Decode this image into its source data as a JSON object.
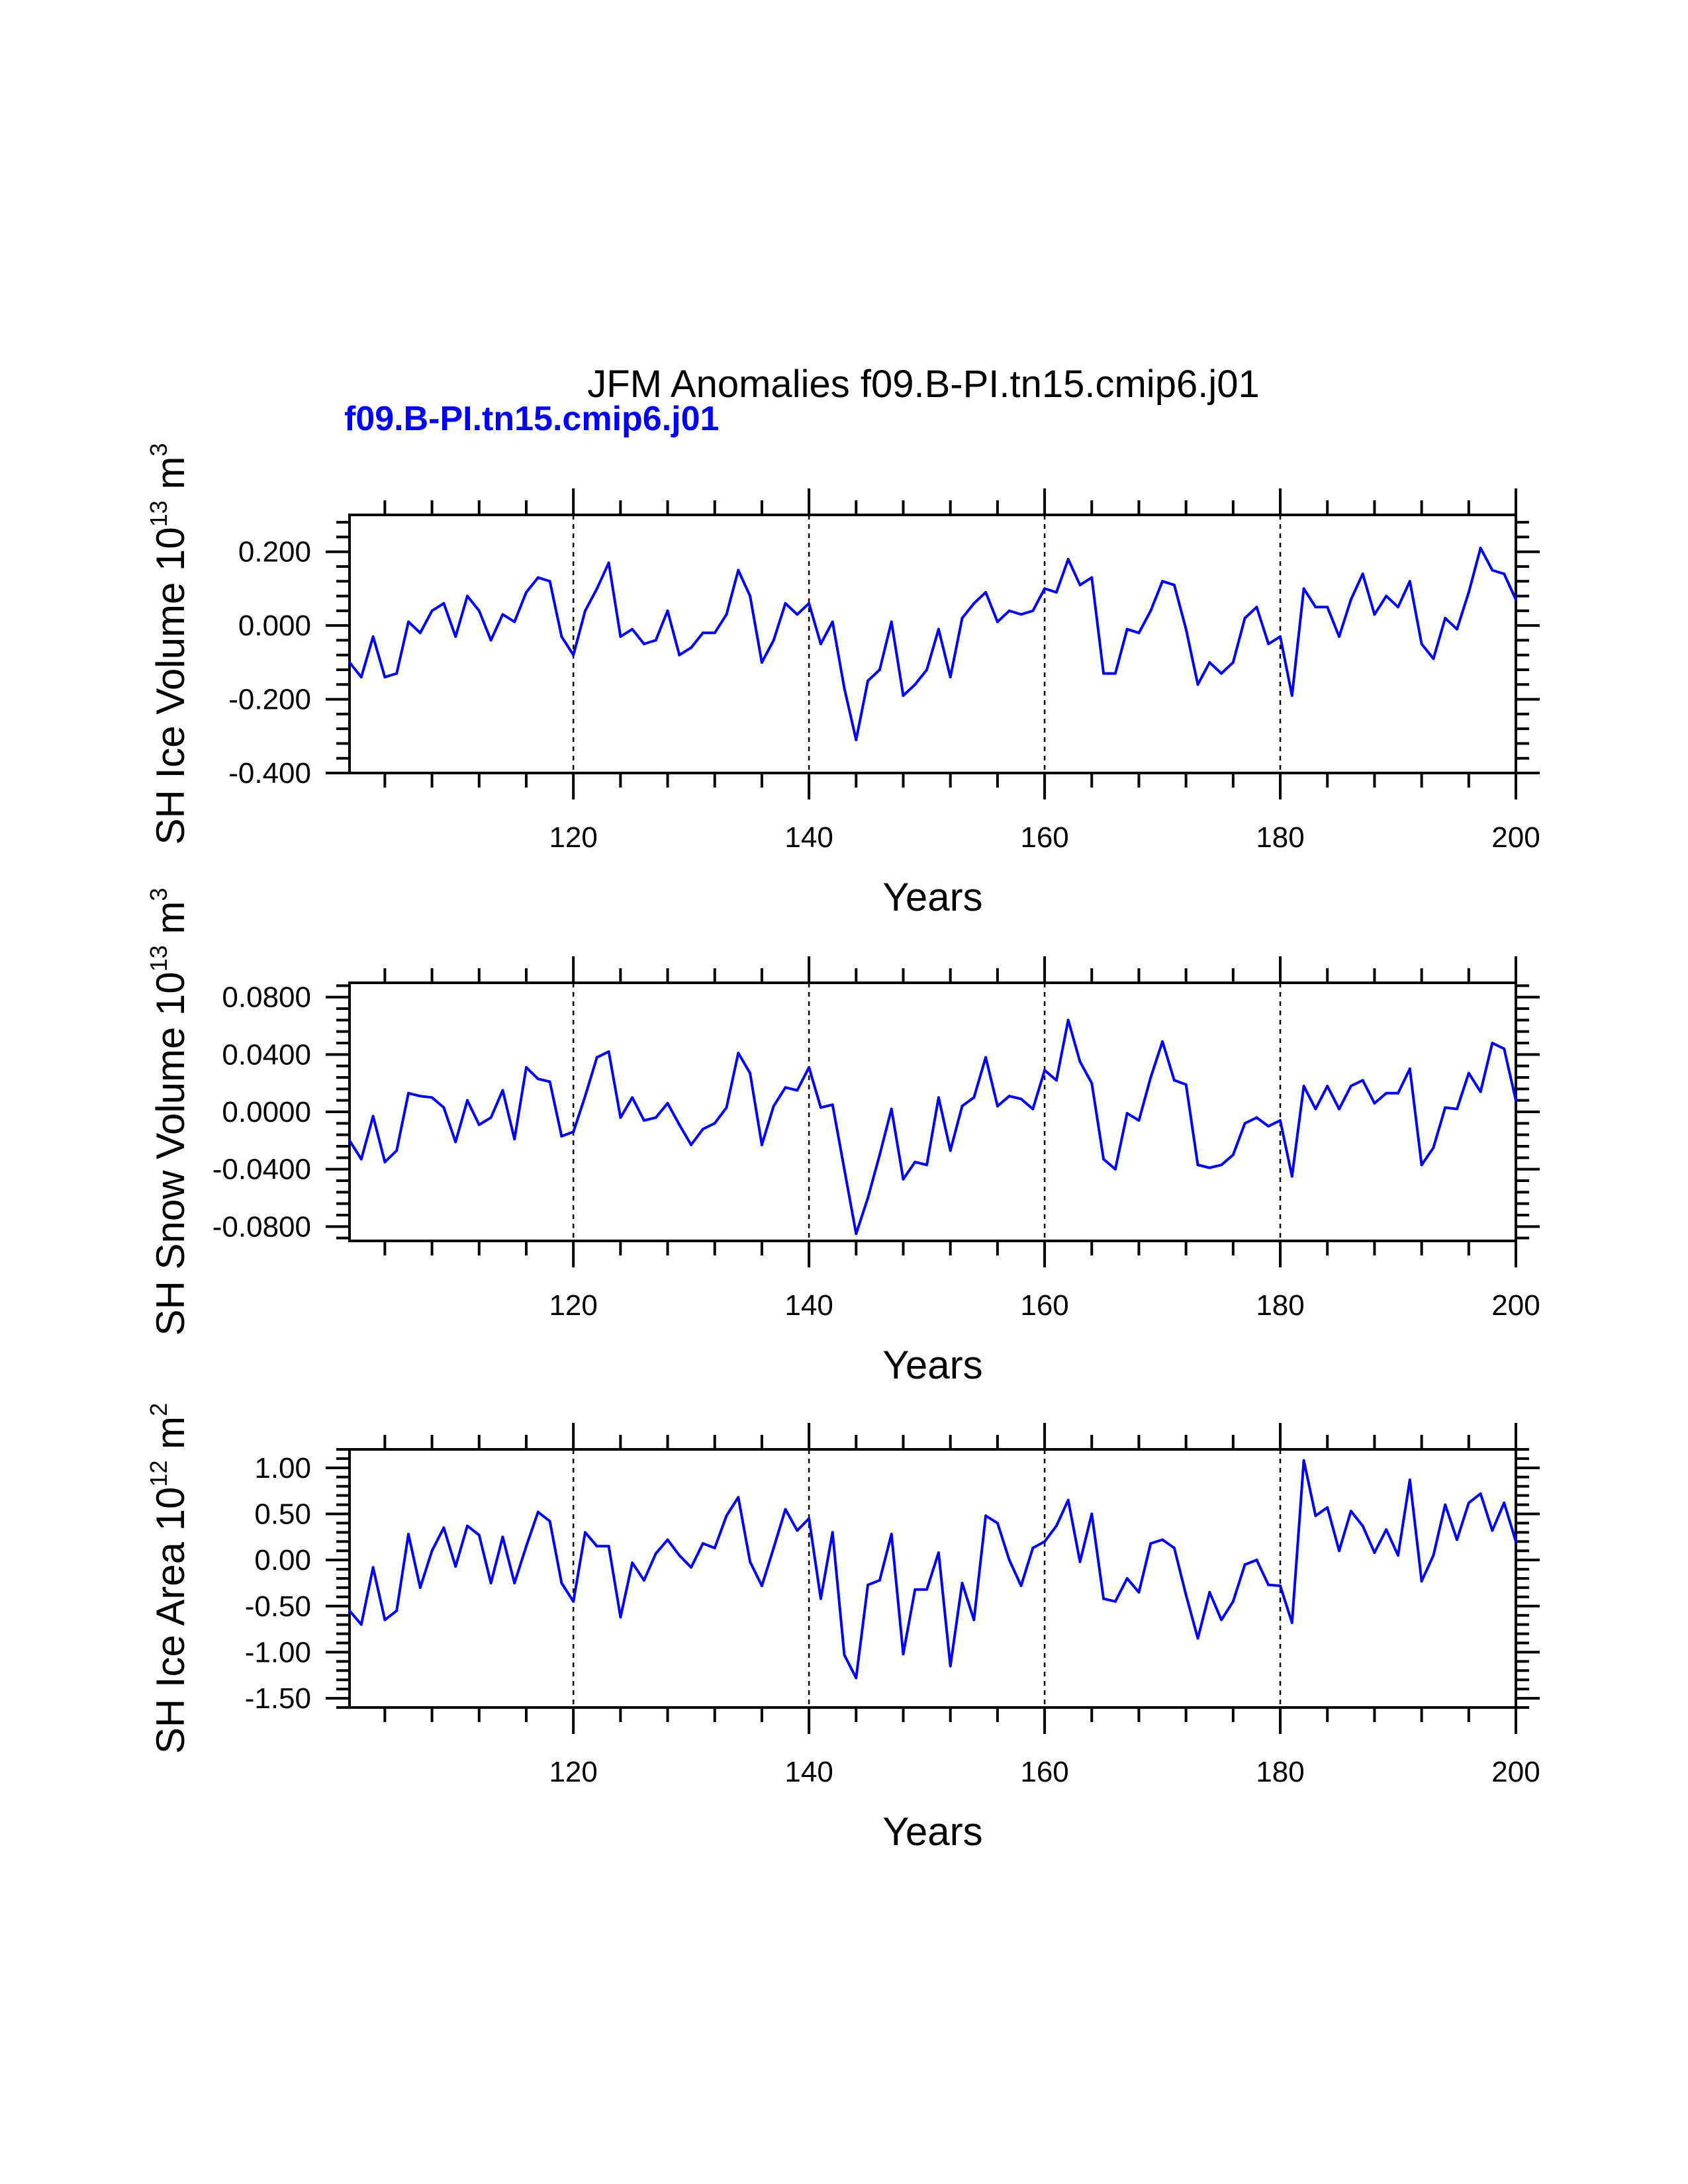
{
  "title": "JFM Anomalies f09.B-PI.tn15.cmip6.j01",
  "subtitle": "f09.B-PI.tn15.cmip6.j01",
  "subtitle_color": "#0000ff",
  "line_color": "#0000ff",
  "chart_data": [
    {
      "type": "line",
      "ylabel": "SH Ice Volume 10",
      "ylabel_exp": "13",
      "ylabel_unit": " m",
      "ylabel_unit_exp": "3",
      "xlabel": "Years",
      "xlim": [
        101,
        200
      ],
      "ylim": [
        -0.4,
        0.3
      ],
      "yticks": [
        -0.4,
        -0.2,
        0.0,
        0.2
      ],
      "yticklabels": [
        "-0.400",
        "-0.200",
        "0.000",
        "0.200"
      ],
      "xticks": [
        120,
        140,
        160,
        180,
        200
      ],
      "xticklabels": [
        "120",
        "140",
        "160",
        "180",
        "200"
      ],
      "vlines": [
        120,
        140,
        160,
        180
      ],
      "series": [
        {
          "x_start": 101,
          "values": [
            -0.1,
            -0.14,
            -0.03,
            -0.14,
            -0.13,
            0.01,
            -0.02,
            0.04,
            0.06,
            -0.03,
            0.08,
            0.04,
            -0.04,
            0.03,
            0.01,
            0.09,
            0.13,
            0.12,
            -0.03,
            -0.08,
            0.04,
            0.1,
            0.17,
            -0.03,
            -0.01,
            -0.05,
            -0.04,
            0.04,
            -0.08,
            -0.06,
            -0.02,
            -0.02,
            0.03,
            0.15,
            0.08,
            -0.1,
            -0.04,
            0.06,
            0.03,
            0.06,
            -0.05,
            0.01,
            -0.17,
            -0.31,
            -0.15,
            -0.12,
            0.01,
            -0.19,
            -0.16,
            -0.12,
            -0.01,
            -0.14,
            0.02,
            0.06,
            0.09,
            0.01,
            0.04,
            0.03,
            0.04,
            0.1,
            0.09,
            0.18,
            0.11,
            0.13,
            -0.13,
            -0.13,
            -0.01,
            -0.02,
            0.04,
            0.12,
            0.11,
            -0.01,
            -0.16,
            -0.1,
            -0.13,
            -0.1,
            0.02,
            0.05,
            -0.05,
            -0.03,
            -0.19,
            0.1,
            0.05,
            0.05,
            -0.03,
            0.07,
            0.14,
            0.03,
            0.08,
            0.05,
            0.12,
            -0.05,
            -0.09,
            0.02,
            -0.01,
            0.09,
            0.21,
            0.15,
            0.14,
            0.07
          ]
        }
      ]
    },
    {
      "type": "line",
      "ylabel": "SH Snow Volume 10",
      "ylabel_exp": "13",
      "ylabel_unit": " m",
      "ylabel_unit_exp": "3",
      "xlabel": "Years",
      "xlim": [
        101,
        200
      ],
      "ylim": [
        -0.09,
        0.09
      ],
      "yticks": [
        -0.08,
        -0.04,
        0.0,
        0.04,
        0.08
      ],
      "yticklabels": [
        "-0.0800",
        "-0.0400",
        "0.0000",
        "0.0400",
        "0.0800"
      ],
      "xticks": [
        120,
        140,
        160,
        180,
        200
      ],
      "xticklabels": [
        "120",
        "140",
        "160",
        "180",
        "200"
      ],
      "vlines": [
        120,
        140,
        160,
        180
      ],
      "series": [
        {
          "x_start": 101,
          "values": [
            -0.02,
            -0.033,
            -0.003,
            -0.035,
            -0.027,
            0.013,
            0.011,
            0.01,
            0.003,
            -0.021,
            0.008,
            -0.009,
            -0.004,
            0.015,
            -0.019,
            0.031,
            0.023,
            0.021,
            -0.017,
            -0.014,
            0.011,
            0.038,
            0.042,
            -0.004,
            0.01,
            -0.006,
            -0.004,
            0.006,
            -0.009,
            -0.023,
            -0.012,
            -0.008,
            0.003,
            0.041,
            0.027,
            -0.023,
            0.004,
            0.017,
            0.015,
            0.031,
            0.003,
            0.005,
            -0.04,
            -0.085,
            -0.06,
            -0.03,
            0.002,
            -0.047,
            -0.035,
            -0.037,
            0.01,
            -0.027,
            0.004,
            0.01,
            0.038,
            0.004,
            0.011,
            0.009,
            0.002,
            0.029,
            0.022,
            0.064,
            0.035,
            0.02,
            -0.033,
            -0.04,
            -0.001,
            -0.006,
            0.024,
            0.049,
            0.022,
            0.019,
            -0.037,
            -0.039,
            -0.037,
            -0.03,
            -0.008,
            -0.004,
            -0.01,
            -0.006,
            -0.045,
            0.018,
            0.002,
            0.018,
            0.002,
            0.018,
            0.022,
            0.006,
            0.013,
            0.013,
            0.03,
            -0.037,
            -0.025,
            0.003,
            0.002,
            0.027,
            0.014,
            0.048,
            0.044,
            0.008
          ]
        }
      ]
    },
    {
      "type": "line",
      "ylabel": "SH Ice Area 10",
      "ylabel_exp": "12",
      "ylabel_unit": " m",
      "ylabel_unit_exp": "2",
      "xlabel": "Years",
      "xlim": [
        101,
        200
      ],
      "ylim": [
        -1.6,
        1.2
      ],
      "yticks": [
        -1.5,
        -1.0,
        -0.5,
        0.0,
        0.5,
        1.0
      ],
      "yticklabels": [
        "-1.50",
        "-1.00",
        "-0.50",
        "0.00",
        "0.50",
        "1.00"
      ],
      "xticks": [
        120,
        140,
        160,
        180,
        200
      ],
      "xticklabels": [
        "120",
        "140",
        "160",
        "180",
        "200"
      ],
      "vlines": [
        120,
        140,
        160,
        180
      ],
      "series": [
        {
          "x_start": 101,
          "values": [
            -0.55,
            -0.7,
            -0.08,
            -0.65,
            -0.55,
            0.28,
            -0.3,
            0.1,
            0.35,
            -0.07,
            0.37,
            0.27,
            -0.25,
            0.25,
            -0.25,
            0.15,
            0.52,
            0.42,
            -0.25,
            -0.45,
            0.3,
            0.15,
            0.15,
            -0.62,
            -0.03,
            -0.22,
            0.07,
            0.22,
            0.05,
            -0.08,
            0.18,
            0.13,
            0.48,
            0.68,
            -0.02,
            -0.28,
            0.13,
            0.55,
            0.32,
            0.45,
            -0.42,
            0.3,
            -1.03,
            -1.28,
            -0.27,
            -0.22,
            0.28,
            -1.02,
            -0.32,
            -0.32,
            0.08,
            -1.15,
            -0.25,
            -0.65,
            0.48,
            0.4,
            0.0,
            -0.28,
            0.13,
            0.2,
            0.37,
            0.65,
            -0.02,
            0.5,
            -0.42,
            -0.45,
            -0.2,
            -0.35,
            0.18,
            0.22,
            0.13,
            -0.38,
            -0.85,
            -0.35,
            -0.65,
            -0.45,
            -0.05,
            0.0,
            -0.27,
            -0.28,
            -0.68,
            1.08,
            0.48,
            0.57,
            0.1,
            0.53,
            0.37,
            0.08,
            0.33,
            0.05,
            0.87,
            -0.23,
            0.05,
            0.6,
            0.22,
            0.62,
            0.72,
            0.32,
            0.62,
            0.2
          ]
        }
      ]
    }
  ]
}
